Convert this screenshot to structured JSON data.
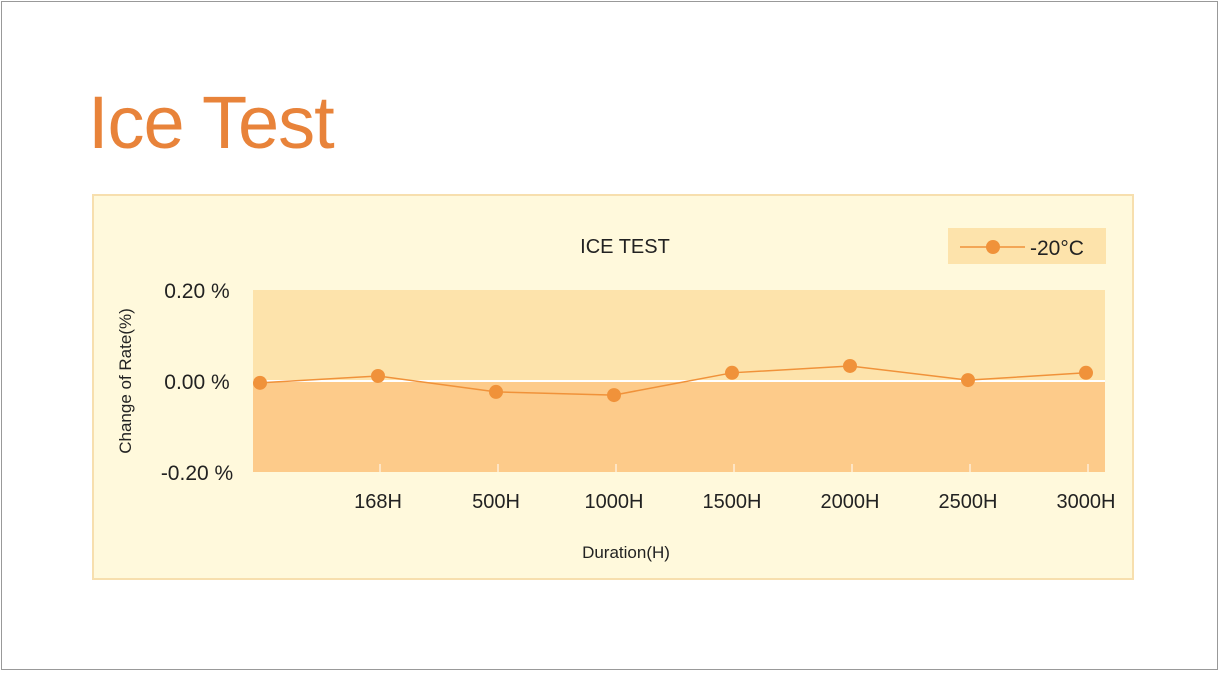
{
  "page": {
    "title": "Ice Test"
  },
  "chart_data": {
    "type": "line",
    "title": "ICE  TEST",
    "xlabel": "Duration(H)",
    "ylabel": "Change of Rate(%)",
    "categories": [
      "",
      "168H",
      "500H",
      "1000H",
      "1500H",
      "2000H",
      "2500H",
      "3000H"
    ],
    "series": [
      {
        "name": "-20°C",
        "values": [
          -0.004,
          0.011,
          -0.024,
          -0.031,
          0.018,
          0.033,
          0.002,
          0.018
        ]
      }
    ],
    "ylim": [
      -0.2,
      0.2
    ],
    "yticks": [
      {
        "v": 0.2,
        "label": "0.20 %"
      },
      {
        "v": 0,
        "label": "0.00 %"
      },
      {
        "v": -0.2,
        "label": "-0.20 %"
      }
    ],
    "legend": "top-right",
    "colors": {
      "line": "#f0923a",
      "upper_band": "#fde3ab",
      "lower_band": "#fdcb8a",
      "title": "#e8833a"
    }
  }
}
